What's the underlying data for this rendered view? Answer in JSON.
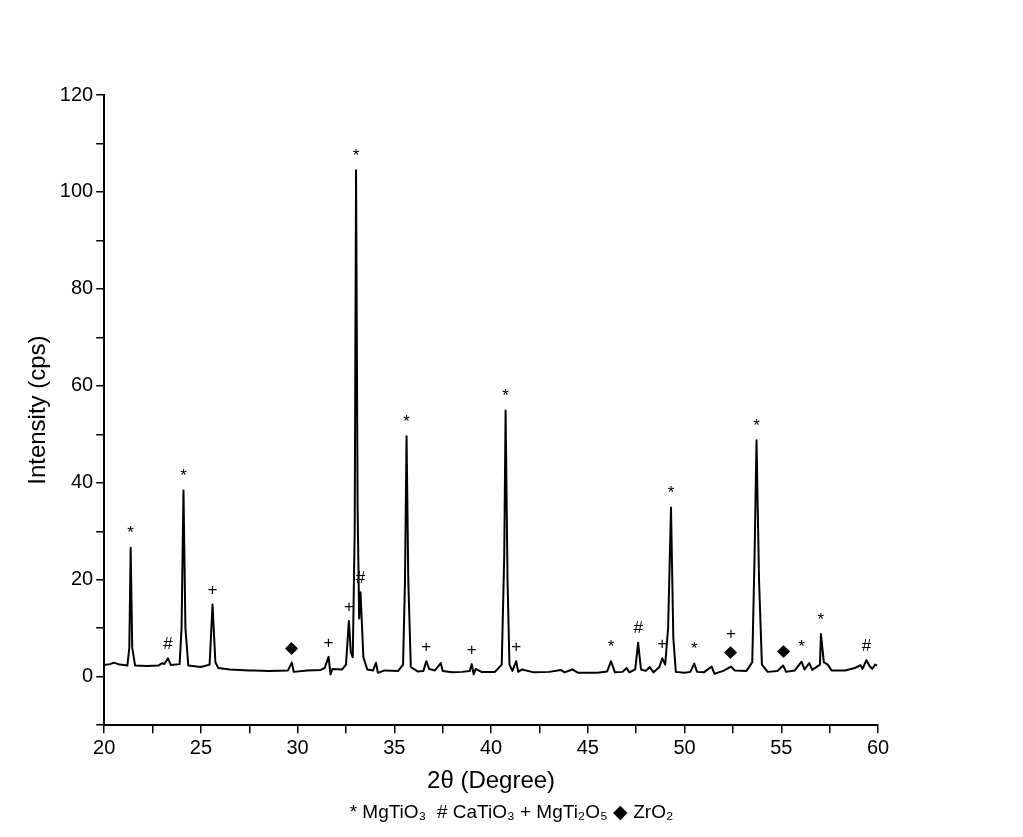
{
  "chart_data": {
    "type": "line",
    "xlabel": "2θ (Degree)",
    "ylabel": "Intensity (cps)",
    "xlim": [
      20,
      60
    ],
    "ylim": [
      -10,
      120
    ],
    "xticks": [
      20,
      {
        "value": 22.5,
        "label": null
      },
      25,
      {
        "value": 27.5,
        "label": null
      },
      30,
      {
        "value": 32.5,
        "label": null
      },
      35,
      {
        "value": 37.5,
        "label": null
      },
      40,
      {
        "value": 42.5,
        "label": null
      },
      45,
      {
        "value": 47.5,
        "label": null
      },
      50,
      {
        "value": 52.5,
        "label": null
      },
      55,
      {
        "value": 57.5,
        "label": null
      },
      60
    ],
    "yticks": [
      {
        "value": -10,
        "label": null
      },
      0,
      {
        "value": 10,
        "label": null
      },
      20,
      {
        "value": 30,
        "label": null
      },
      40,
      {
        "value": 50,
        "label": null
      },
      60,
      {
        "value": 70,
        "label": null
      },
      80,
      {
        "value": 90,
        "label": null
      },
      100,
      {
        "value": 110,
        "label": null
      },
      120
    ],
    "grid": false,
    "legend": false,
    "marker": "none",
    "line_style": "solid",
    "series": [
      {
        "color": "#000000",
        "x": [
          20,
          20.3,
          20.5,
          20.8,
          21.2,
          21.3,
          21.37,
          21.45,
          21.6,
          22.2,
          22.8,
          23.0,
          23.1,
          23.3,
          23.45,
          23.9,
          24.0,
          24.1,
          24.2,
          24.35,
          25.0,
          25.45,
          25.6,
          25.75,
          25.9,
          26.5,
          27.5,
          28.5,
          29.5,
          29.7,
          29.8,
          30.5,
          31.2,
          31.4,
          31.6,
          31.7,
          31.8,
          32.3,
          32.5,
          32.65,
          32.75,
          32.85,
          32.95,
          33.02,
          33.1,
          33.18,
          33.25,
          33.4,
          33.6,
          33.9,
          34.05,
          34.15,
          34.5,
          35.2,
          35.45,
          35.55,
          35.63,
          35.72,
          35.85,
          36.2,
          36.5,
          36.65,
          36.8,
          37.1,
          37.4,
          37.5,
          38.0,
          38.5,
          38.9,
          39.0,
          39.1,
          39.2,
          39.5,
          40.2,
          40.55,
          40.68,
          40.75,
          40.85,
          40.95,
          41.1,
          41.3,
          41.4,
          41.6,
          42.2,
          43.0,
          43.6,
          43.8,
          44.2,
          44.5,
          45.5,
          46.0,
          46.2,
          46.4,
          46.8,
          47.0,
          47.15,
          47.45,
          47.6,
          47.75,
          48.0,
          48.2,
          48.4,
          48.7,
          48.85,
          49.0,
          49.15,
          49.3,
          49.42,
          49.55,
          50.0,
          50.3,
          50.5,
          50.65,
          51.0,
          51.4,
          51.55,
          52.0,
          52.4,
          52.6,
          53.2,
          53.5,
          53.62,
          53.72,
          53.85,
          54.0,
          54.3,
          54.8,
          55.1,
          55.25,
          55.7,
          56.05,
          56.2,
          56.45,
          56.6,
          57.0,
          57.05,
          57.2,
          57.4,
          57.6,
          58.3,
          58.8,
          59.1,
          59.2,
          59.4,
          59.55,
          59.7,
          59.85,
          59.95
        ],
        "values": [
          2.4,
          2.6,
          2.9,
          2.5,
          2.3,
          6,
          26.6,
          6,
          2.3,
          2.2,
          2.3,
          2.8,
          2.6,
          3.8,
          2.4,
          2.6,
          10,
          38.4,
          10,
          2.3,
          2.0,
          2.5,
          14.9,
          3,
          1.8,
          1.5,
          1.3,
          1.2,
          1.3,
          2.9,
          1.0,
          1.3,
          1.4,
          1.8,
          4.1,
          0.5,
          1.6,
          1.5,
          2.5,
          11.5,
          5,
          4,
          30,
          104.5,
          35,
          12,
          17.4,
          4,
          1.5,
          1.3,
          2.9,
          0.8,
          1.3,
          1.2,
          2.5,
          20,
          49.6,
          20,
          2.0,
          1.1,
          1.2,
          3.2,
          1.6,
          1.3,
          2.8,
          1.2,
          0.9,
          1.0,
          1.2,
          2.6,
          0.5,
          1.6,
          1.0,
          1.0,
          2.5,
          25,
          54.9,
          20,
          2.5,
          1.2,
          3.2,
          1.0,
          1.5,
          0.9,
          1.0,
          1.4,
          0.9,
          1.5,
          0.8,
          0.8,
          1.1,
          3.2,
          0.9,
          1.0,
          1.8,
          0.9,
          1.5,
          7.0,
          1.5,
          1.2,
          2.0,
          0.9,
          2,
          3.8,
          2.5,
          10,
          34.9,
          8,
          1.0,
          0.8,
          1.0,
          2.7,
          1.0,
          0.9,
          2.1,
          0.6,
          1.2,
          2.1,
          1.3,
          1.2,
          3,
          25,
          48.8,
          20,
          2.5,
          1.0,
          1.2,
          2.3,
          1.0,
          1.3,
          3.1,
          1.5,
          2.8,
          1.4,
          2.5,
          8.8,
          3,
          2.5,
          1.3,
          1.3,
          1.8,
          2.4,
          1.6,
          3.4,
          2.3,
          1.6,
          2.5,
          2.3
        ]
      }
    ],
    "annotations": [
      {
        "text": "*",
        "x": 21.37,
        "y": 26.6
      },
      {
        "text": "#",
        "x": 23.3,
        "y": 3.8
      },
      {
        "text": "*",
        "x": 24.1,
        "y": 38.4
      },
      {
        "text": "+",
        "x": 25.6,
        "y": 14.9
      },
      {
        "text": "◆",
        "x": 29.7,
        "y": 2.9
      },
      {
        "text": "+",
        "x": 31.6,
        "y": 4.1
      },
      {
        "text": "+",
        "x": 32.65,
        "y": 11.5
      },
      {
        "text": "*",
        "x": 33.02,
        "y": 104.5
      },
      {
        "text": "#",
        "x": 33.25,
        "y": 17.4
      },
      {
        "text": "*",
        "x": 35.63,
        "y": 49.6
      },
      {
        "text": "+",
        "x": 36.65,
        "y": 3.2
      },
      {
        "text": "+",
        "x": 39.0,
        "y": 2.6
      },
      {
        "text": "*",
        "x": 40.75,
        "y": 54.9
      },
      {
        "text": "+",
        "x": 41.3,
        "y": 3.2
      },
      {
        "text": "*",
        "x": 46.2,
        "y": 3.2
      },
      {
        "text": "#",
        "x": 47.6,
        "y": 7.0
      },
      {
        "text": "+",
        "x": 48.85,
        "y": 3.8
      },
      {
        "text": "*",
        "x": 49.3,
        "y": 34.9
      },
      {
        "text": "*",
        "x": 50.5,
        "y": 2.7
      },
      {
        "text": "◆",
        "x": 52.4,
        "y": 2.1
      },
      {
        "text": "+",
        "x": 52.4,
        "y": 2.1
      },
      {
        "text": "*",
        "x": 53.72,
        "y": 48.8
      },
      {
        "text": "◆",
        "x": 55.1,
        "y": 2.3
      },
      {
        "text": "*",
        "x": 56.05,
        "y": 3.1
      },
      {
        "text": "*",
        "x": 57.05,
        "y": 8.8
      },
      {
        "text": "#",
        "x": 59.4,
        "y": 3.4
      },
      "* MgTiO₃  # CaTiO₃ + MgTi₂O₅ ◆ ZrO₂"
    ]
  }
}
